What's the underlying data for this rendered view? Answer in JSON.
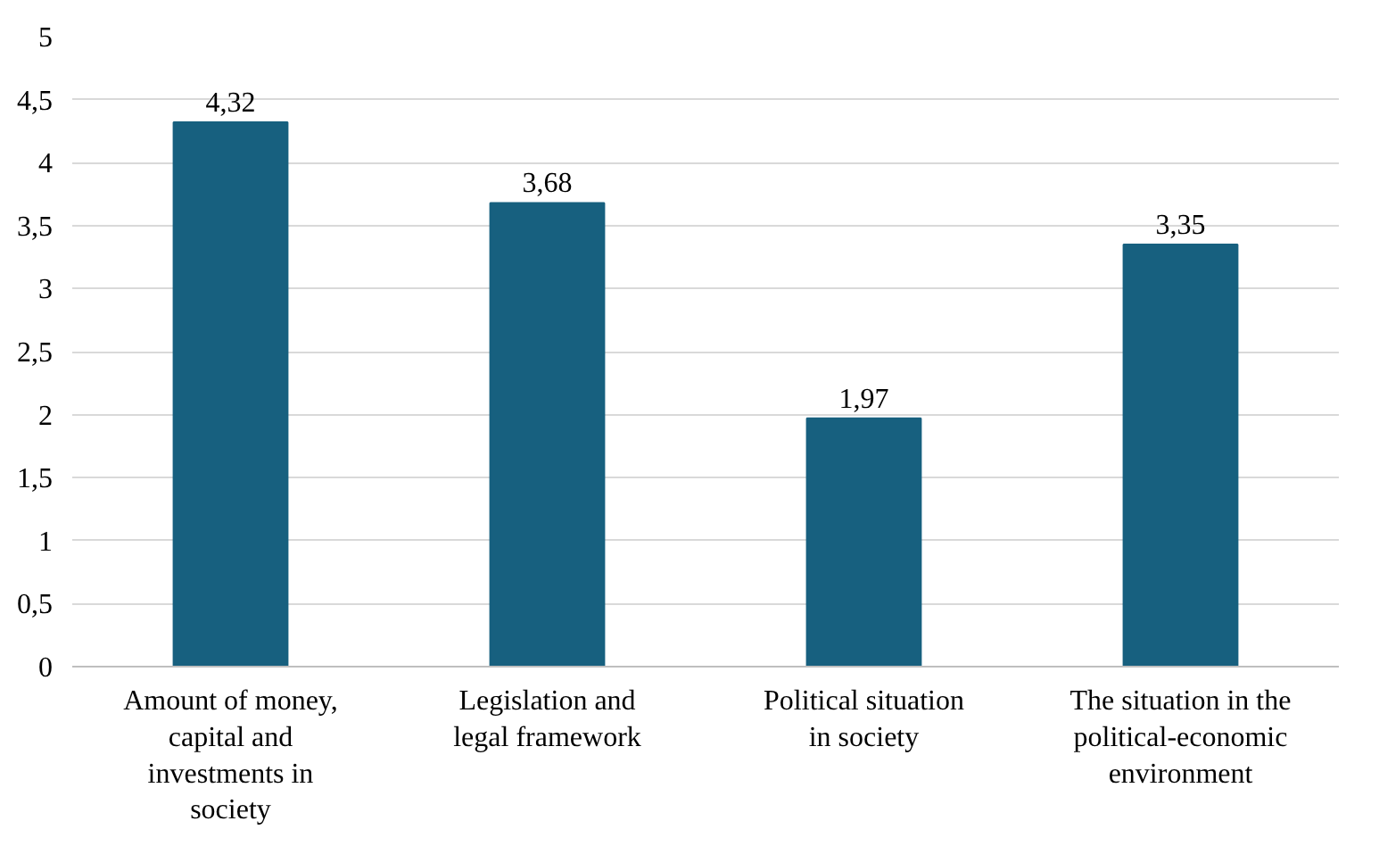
{
  "chart_data": {
    "type": "bar",
    "categories": [
      "Amount of money, capital and investments in society",
      "Legislation and legal framework",
      "Political situation in society",
      "The situation in the political-economic environment"
    ],
    "values": [
      4.32,
      3.68,
      1.97,
      3.35
    ],
    "value_labels": [
      "4,32",
      "3,68",
      "1,97",
      "3,35"
    ],
    "color": "#17607f",
    "ylim": [
      0,
      5
    ],
    "yticks": [
      0,
      {
        "value": 0.5,
        "label": "0,5"
      },
      1,
      {
        "value": 1.5,
        "label": "1,5"
      },
      2,
      {
        "value": 2.5,
        "label": "2,5"
      },
      3,
      {
        "value": 3.5,
        "label": "3,5"
      },
      4,
      {
        "value": 4.5,
        "label": "4,5"
      },
      5
    ],
    "grid": "y"
  }
}
